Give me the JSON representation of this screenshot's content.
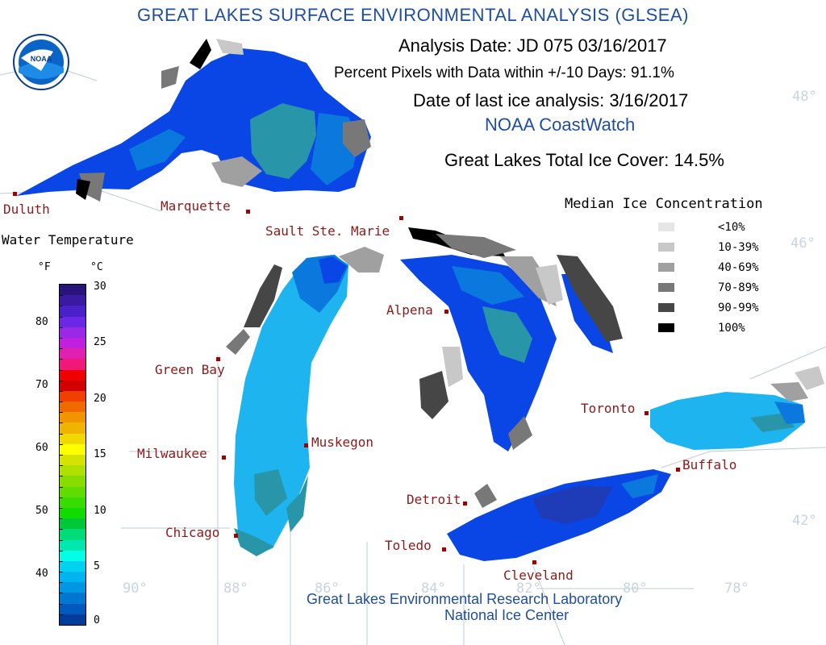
{
  "header": {
    "title": "GREAT LAKES SURFACE ENVIRONMENTAL ANALYSIS (GLSEA)",
    "analysis_date": "Analysis Date:  JD 075 03/16/2017",
    "percent_pixels": "Percent Pixels with Data within +/-10 Days:  91.1%",
    "last_ice": "Date of last ice analysis: 3/16/2017",
    "coastwatch": "NOAA CoastWatch",
    "total_ice_cover": "Great Lakes Total Ice Cover:  14.5%"
  },
  "logo": {
    "text": "NOAA"
  },
  "cities": [
    {
      "name": "Duluth"
    },
    {
      "name": "Marquette"
    },
    {
      "name": "Sault Ste. Marie"
    },
    {
      "name": "Green Bay"
    },
    {
      "name": "Alpena"
    },
    {
      "name": "Milwaukee"
    },
    {
      "name": "Muskegon"
    },
    {
      "name": "Chicago"
    },
    {
      "name": "Toronto"
    },
    {
      "name": "Buffalo"
    },
    {
      "name": "Detroit"
    },
    {
      "name": "Toledo"
    },
    {
      "name": "Cleveland"
    }
  ],
  "gridlines": {
    "lat": [
      "48°",
      "46°",
      "42°"
    ],
    "lon": [
      "90°",
      "88°",
      "86°",
      "84°",
      "82°",
      "80°",
      "78°"
    ]
  },
  "water_temperature": {
    "title": "Water Temperature",
    "unit_f": "°F",
    "unit_c": "°C",
    "f_ticks": [
      "80",
      "70",
      "60",
      "50",
      "40"
    ],
    "c_ticks": [
      "30",
      "25",
      "20",
      "15",
      "10",
      "5",
      "0"
    ],
    "colors": [
      "#28147a",
      "#3a1aa0",
      "#4a20c8",
      "#6a28e6",
      "#9a28e6",
      "#c020e0",
      "#e020b0",
      "#f01878",
      "#f00000",
      "#d20000",
      "#f04000",
      "#f06800",
      "#f09400",
      "#f0b400",
      "#f0d800",
      "#ffff00",
      "#d4e400",
      "#aee000",
      "#88dc00",
      "#60dc00",
      "#38dc00",
      "#10dc00",
      "#00c838",
      "#00dc78",
      "#00e8b0",
      "#00ffe6",
      "#00d2f0",
      "#00b4f0",
      "#0096e6",
      "#0078d2",
      "#005abe",
      "#003c9c"
    ]
  },
  "ice_legend": {
    "title": "Median Ice Concentration",
    "items": [
      {
        "label": "<10%",
        "color": "#e6e6e6"
      },
      {
        "label": "10-39%",
        "color": "#c8c8c8"
      },
      {
        "label": "40-69%",
        "color": "#a0a0a0"
      },
      {
        "label": "70-89%",
        "color": "#787878"
      },
      {
        "label": "90-99%",
        "color": "#464646"
      },
      {
        "label": "100%",
        "color": "#000000"
      }
    ]
  },
  "footer": {
    "line1": "Great Lakes Environmental Research Laboratory",
    "line2": "National Ice Center"
  },
  "colors": {
    "title_blue": "#1f4e9c",
    "deep_blue": "#0a46e6",
    "mid_blue": "#0a78dc",
    "light_blue": "#1eb4f0",
    "teal": "#2896a8",
    "city_red": "#8b1a1a"
  }
}
